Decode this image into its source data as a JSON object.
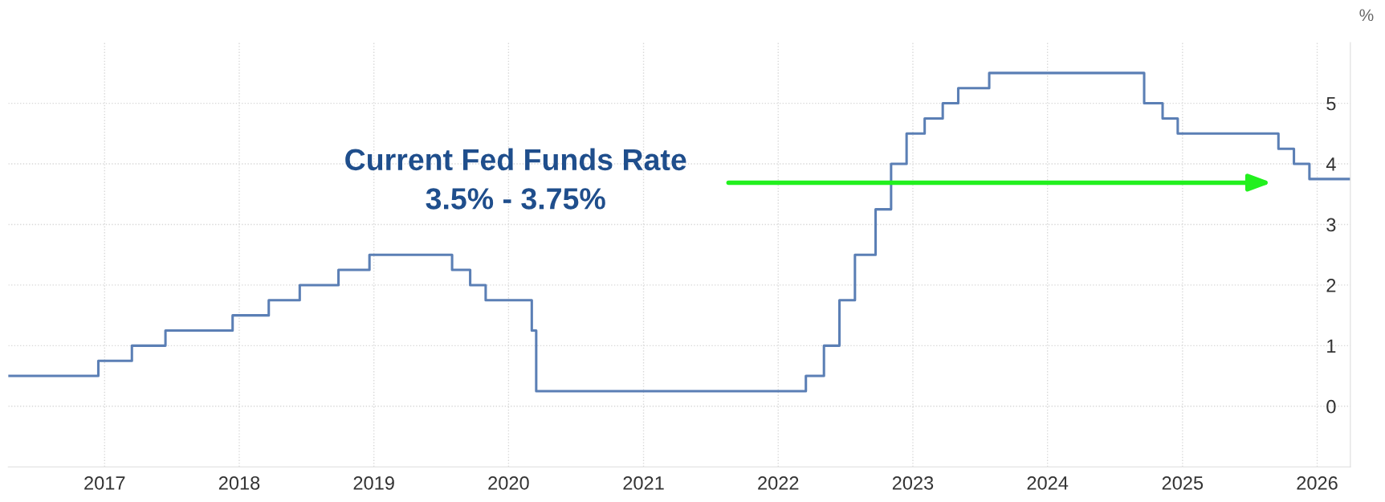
{
  "chart_data": {
    "type": "step",
    "ylabel": "%",
    "x": [
      "2016-04-15",
      "2016-12-15",
      "2017-03-16",
      "2017-06-15",
      "2017-12-14",
      "2018-03-22",
      "2018-06-14",
      "2018-09-27",
      "2018-12-20",
      "2019-08-01",
      "2019-09-19",
      "2019-10-31",
      "2020-03-04",
      "2020-03-16",
      "2022-03-17",
      "2022-05-05",
      "2022-06-16",
      "2022-07-28",
      "2022-09-22",
      "2022-11-03",
      "2022-12-15",
      "2023-02-02",
      "2023-03-23",
      "2023-05-04",
      "2023-07-27",
      "2024-09-19",
      "2024-11-08",
      "2024-12-19",
      "2025-09-18",
      "2025-10-30",
      "2025-12-11",
      "2026-04-01"
    ],
    "series": [
      {
        "color": "#5b7fb5",
        "values": [
          0.5,
          0.75,
          1.0,
          1.25,
          1.5,
          1.75,
          2.0,
          2.25,
          2.5,
          2.25,
          2.0,
          1.75,
          1.25,
          0.25,
          0.5,
          1.0,
          1.75,
          2.5,
          3.25,
          4.0,
          4.5,
          4.75,
          5.0,
          5.25,
          5.5,
          5.0,
          4.75,
          4.5,
          4.25,
          4.0,
          3.75,
          3.75
        ]
      }
    ],
    "xlim": [
      "2016-04-15",
      "2026-04-01"
    ],
    "xticks": [
      {
        "value": "2017",
        "label": "2017"
      },
      {
        "value": "2018",
        "label": "2018"
      },
      {
        "value": "2019",
        "label": "2019"
      },
      {
        "value": "2020",
        "label": "2020"
      },
      {
        "value": "2021",
        "label": "2021"
      },
      {
        "value": "2022",
        "label": "2022"
      },
      {
        "value": "2023",
        "label": "2023"
      },
      {
        "value": "2024",
        "label": "2024"
      },
      {
        "value": "2025",
        "label": "2025"
      },
      {
        "value": "2026",
        "label": "2026"
      }
    ],
    "ylim": [
      -1,
      6
    ],
    "yticks": [
      0,
      1,
      2,
      3,
      4,
      5
    ],
    "grid": true,
    "line_style": "solid",
    "marker": "none",
    "annotations": [
      "Current Fed Funds Rate\n3.5% - 3.75%"
    ]
  }
}
